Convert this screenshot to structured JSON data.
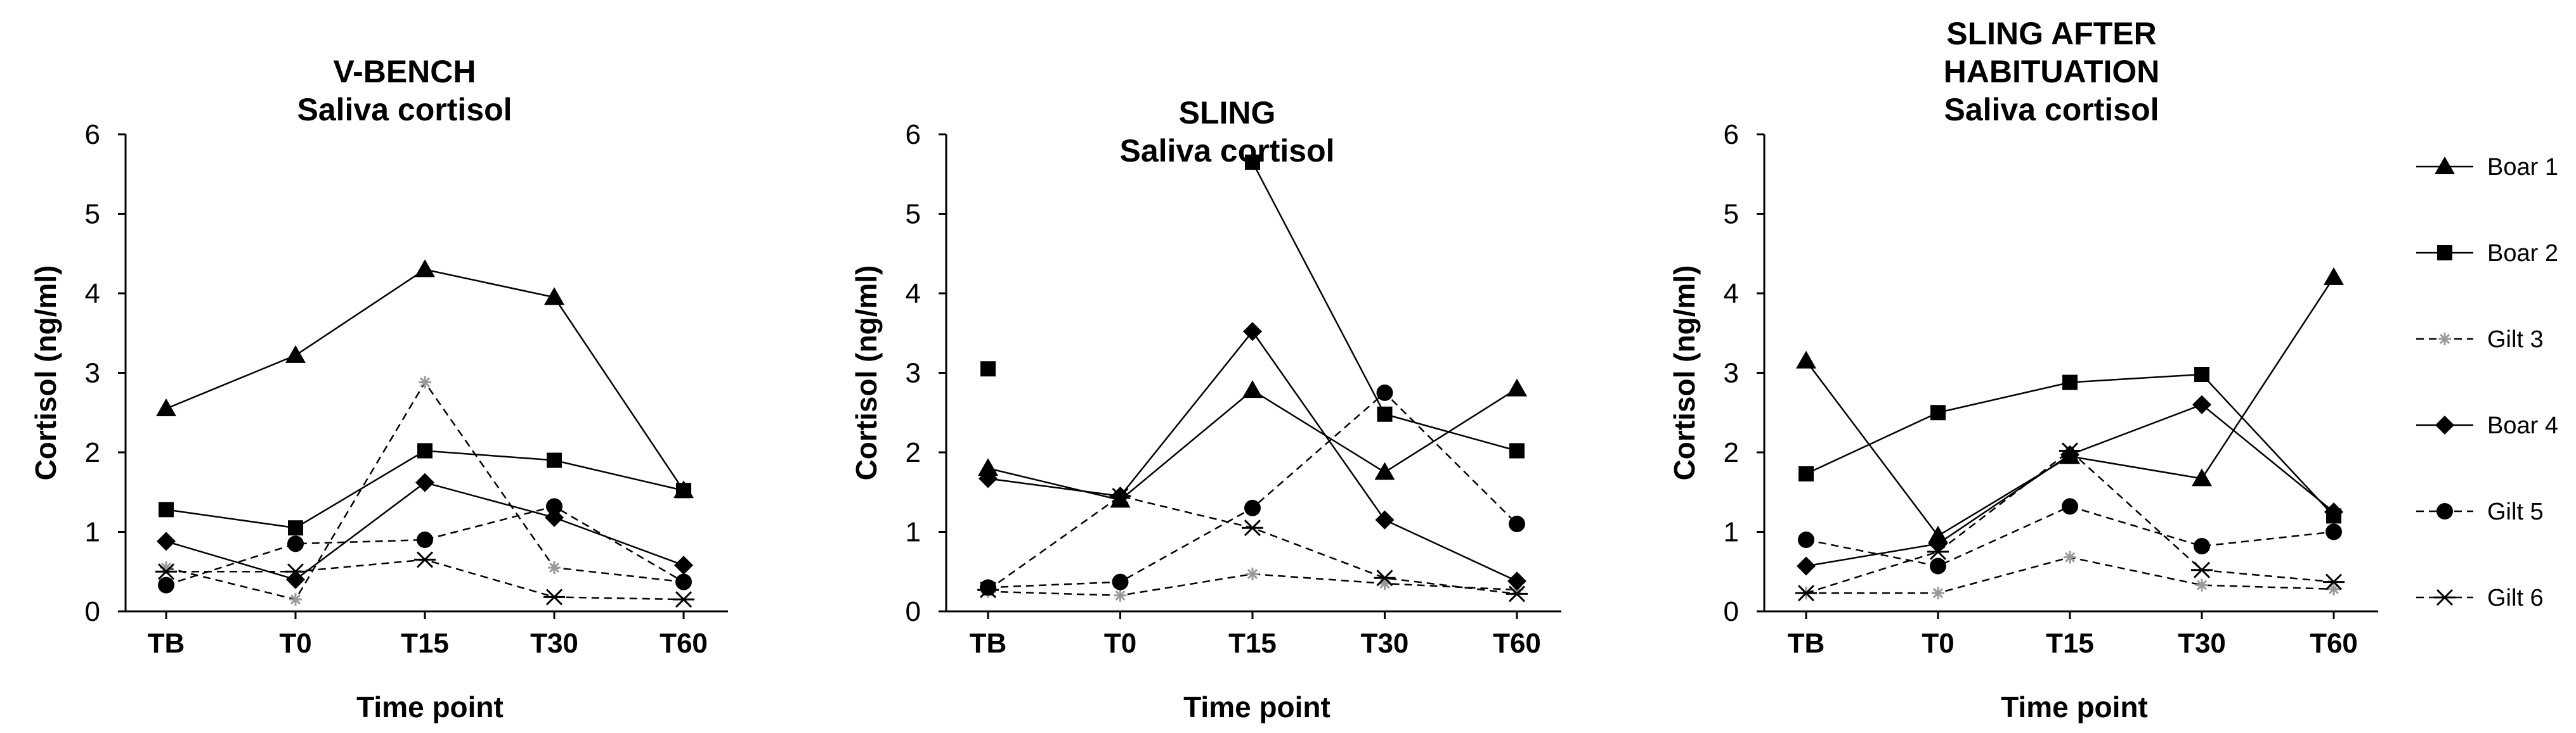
{
  "chart_data": [
    {
      "type": "line",
      "title": [
        "V-BENCH",
        "Saliva cortisol"
      ],
      "xlabel": "Time point",
      "ylabel": "Cortisol (ng/ml)",
      "categories": [
        "TB",
        "T0",
        "T15",
        "T30",
        "T60"
      ],
      "ylim": [
        0,
        6
      ],
      "yticks": [
        "0",
        "1",
        "2",
        "3",
        "4",
        "5",
        "6"
      ],
      "series": [
        {
          "name": "Boar 1",
          "values": [
            2.55,
            3.22,
            4.3,
            3.95,
            1.52
          ]
        },
        {
          "name": "Boar 2",
          "values": [
            1.28,
            1.05,
            2.02,
            1.9,
            1.52
          ]
        },
        {
          "name": "Gilt 3",
          "values": [
            0.55,
            0.15,
            2.88,
            0.55,
            0.37
          ]
        },
        {
          "name": "Boar 4",
          "values": [
            0.88,
            0.4,
            1.62,
            1.18,
            0.58
          ]
        },
        {
          "name": "Gilt 5",
          "values": [
            0.33,
            0.85,
            0.9,
            1.32,
            0.37
          ]
        },
        {
          "name": "Gilt 6",
          "values": [
            0.5,
            0.5,
            0.65,
            0.18,
            0.15
          ]
        }
      ]
    },
    {
      "type": "line",
      "title": [
        "SLING",
        "Saliva cortisol"
      ],
      "xlabel": "Time point",
      "ylabel": "Cortisol (ng/ml)",
      "categories": [
        "TB",
        "T0",
        "T15",
        "T30",
        "T60"
      ],
      "ylim": [
        0,
        6
      ],
      "yticks": [
        "0",
        "1",
        "2",
        "3",
        "4",
        "5",
        "6"
      ],
      "series": [
        {
          "name": "Boar 1",
          "values": [
            1.8,
            1.4,
            2.78,
            1.75,
            2.8
          ]
        },
        {
          "name": "Boar 2",
          "values": [
            3.05,
            null,
            5.65,
            2.48,
            2.02
          ]
        },
        {
          "name": "Gilt 3",
          "values": [
            0.25,
            0.2,
            0.47,
            0.35,
            0.27
          ]
        },
        {
          "name": "Boar 4",
          "values": [
            1.67,
            1.45,
            3.52,
            1.15,
            0.38
          ]
        },
        {
          "name": "Gilt 5",
          "values": [
            0.3,
            0.37,
            1.3,
            2.75,
            1.1
          ]
        },
        {
          "name": "Gilt 6",
          "values": [
            0.27,
            1.45,
            1.05,
            0.42,
            0.22
          ]
        }
      ]
    },
    {
      "type": "line",
      "title": [
        "SLING AFTER",
        "HABITUATION",
        "Saliva cortisol"
      ],
      "xlabel": "Time point",
      "ylabel": "Cortisol (ng/ml)",
      "categories": [
        "TB",
        "T0",
        "T15",
        "T30",
        "T60"
      ],
      "ylim": [
        0,
        6
      ],
      "yticks": [
        "0",
        "1",
        "2",
        "3",
        "4",
        "5",
        "6"
      ],
      "series": [
        {
          "name": "Boar 1",
          "values": [
            3.15,
            0.95,
            1.95,
            1.67,
            4.2
          ]
        },
        {
          "name": "Boar 2",
          "values": [
            1.73,
            2.5,
            2.88,
            2.98,
            1.2
          ]
        },
        {
          "name": "Gilt 3",
          "values": [
            0.23,
            0.23,
            0.68,
            0.33,
            0.28
          ]
        },
        {
          "name": "Boar 4",
          "values": [
            0.57,
            0.85,
            1.97,
            2.6,
            1.25
          ]
        },
        {
          "name": "Gilt 5",
          "values": [
            0.9,
            0.57,
            1.32,
            0.82,
            1.0
          ]
        },
        {
          "name": "Gilt 6",
          "values": [
            0.23,
            0.75,
            2.02,
            0.52,
            0.37
          ]
        }
      ]
    }
  ],
  "legend": {
    "placement": "right",
    "items": [
      {
        "name": "Boar 1",
        "marker": "triangle",
        "dashed": false
      },
      {
        "name": "Boar 2",
        "marker": "square",
        "dashed": false
      },
      {
        "name": "Gilt 3",
        "marker": "small-star",
        "dashed": true
      },
      {
        "name": "Boar 4",
        "marker": "diamond",
        "dashed": false
      },
      {
        "name": "Gilt 5",
        "marker": "circle",
        "dashed": true
      },
      {
        "name": "Gilt 6",
        "marker": "asterisk",
        "dashed": true
      }
    ]
  },
  "colors": {
    "line": "#000000",
    "gilt3_marker": "#999999",
    "background": "#ffffff"
  }
}
